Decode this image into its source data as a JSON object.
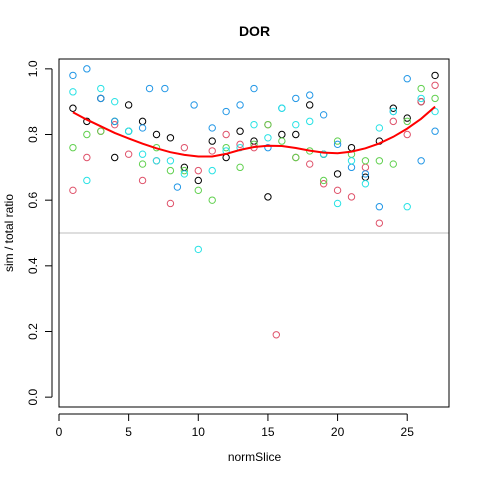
{
  "chart_data": {
    "type": "scatter",
    "title": "DOR",
    "xlabel": "normSlice",
    "ylabel": "sim / total ratio",
    "xlim": [
      0,
      28
    ],
    "ylim": [
      -0.03,
      1.03
    ],
    "x_ticks": [
      0,
      5,
      10,
      15,
      20,
      25
    ],
    "y_ticks": [
      0.0,
      0.2,
      0.4,
      0.6,
      0.8,
      1.0
    ],
    "x_tick_labels": [
      "0",
      "5",
      "10",
      "15",
      "20",
      "25"
    ],
    "y_tick_labels": [
      "0.0",
      "0.2",
      "0.4",
      "0.6",
      "0.8",
      "1.0"
    ],
    "reference_line": {
      "y": 0.5,
      "color": "#bebebe"
    },
    "smooth_line": {
      "color": "#ff0000",
      "x": [
        1,
        2,
        3,
        4,
        5,
        6,
        7,
        8,
        9,
        10,
        11,
        12,
        13,
        14,
        15,
        16,
        17,
        18,
        19,
        20,
        21,
        22,
        23,
        24,
        25,
        26,
        27
      ],
      "y": [
        0.868,
        0.845,
        0.825,
        0.805,
        0.788,
        0.772,
        0.758,
        0.746,
        0.738,
        0.733,
        0.733,
        0.741,
        0.753,
        0.762,
        0.766,
        0.765,
        0.759,
        0.751,
        0.745,
        0.743,
        0.748,
        0.758,
        0.773,
        0.793,
        0.818,
        0.848,
        0.885
      ]
    },
    "series": [
      {
        "color": "#000000",
        "x": [
          1,
          2,
          3,
          4,
          5,
          6,
          7,
          8,
          9,
          10,
          11,
          12,
          13,
          14,
          15,
          16,
          17,
          18,
          19,
          20,
          21,
          22,
          23,
          24,
          25,
          26,
          27
        ],
        "y": [
          0.88,
          0.84,
          0.91,
          0.73,
          0.89,
          0.84,
          0.8,
          0.79,
          0.7,
          0.66,
          0.78,
          0.73,
          0.81,
          0.78,
          0.61,
          0.8,
          0.8,
          0.89,
          0.74,
          0.68,
          0.76,
          0.67,
          0.78,
          0.88,
          0.85,
          0.9,
          0.98
        ]
      },
      {
        "color": "#df536b",
        "x": [
          1,
          2,
          3,
          4,
          5,
          6,
          7,
          8,
          9,
          10,
          11,
          12,
          13,
          14,
          15,
          15.6,
          17,
          18,
          19,
          20,
          21,
          22,
          23,
          24,
          25,
          26,
          27
        ],
        "y": [
          0.63,
          0.73,
          0.81,
          0.83,
          0.74,
          0.66,
          0.72,
          0.59,
          0.76,
          0.69,
          0.75,
          0.8,
          0.77,
          0.76,
          0.83,
          0.19,
          0.73,
          0.71,
          0.65,
          0.63,
          0.61,
          0.7,
          0.53,
          0.84,
          0.8,
          0.9,
          0.95
        ]
      },
      {
        "color": "#61d04f",
        "x": [
          1,
          2,
          3,
          4,
          5,
          6,
          7,
          8,
          9,
          10,
          11,
          12,
          13,
          14,
          15,
          16,
          17,
          18,
          19,
          20,
          21,
          22,
          23,
          24,
          25,
          26,
          27
        ],
        "y": [
          0.76,
          0.8,
          0.81,
          0.84,
          0.81,
          0.71,
          0.76,
          0.69,
          0.69,
          0.63,
          0.6,
          0.76,
          0.7,
          0.77,
          0.83,
          0.78,
          0.73,
          0.75,
          0.66,
          0.78,
          0.74,
          0.72,
          0.72,
          0.71,
          0.84,
          0.94,
          0.91
        ]
      },
      {
        "color": "#2297e6",
        "x": [
          1,
          2,
          3,
          4,
          5,
          6,
          6.5,
          7.6,
          8.5,
          9.7,
          11,
          12,
          13,
          14,
          15,
          16,
          17,
          18,
          19,
          20,
          21,
          22,
          23,
          24,
          25,
          26,
          27
        ],
        "y": [
          0.98,
          1.0,
          0.91,
          0.84,
          0.81,
          0.82,
          0.94,
          0.94,
          0.64,
          0.89,
          0.82,
          0.87,
          0.89,
          0.94,
          0.76,
          0.88,
          0.91,
          0.92,
          0.86,
          0.77,
          0.7,
          0.68,
          0.58,
          0.87,
          0.97,
          0.72,
          0.81
        ]
      },
      {
        "color": "#28e2e5",
        "x": [
          1,
          2,
          3,
          4,
          5,
          6,
          7,
          8,
          9,
          10,
          11,
          12,
          13,
          14,
          15,
          16,
          17,
          18,
          19,
          20,
          21,
          22,
          23,
          24,
          25,
          26,
          27
        ],
        "y": [
          0.93,
          0.66,
          0.94,
          0.9,
          0.81,
          0.74,
          0.72,
          0.72,
          0.68,
          0.45,
          0.69,
          0.75,
          0.76,
          0.83,
          0.79,
          0.88,
          0.83,
          0.84,
          0.74,
          0.59,
          0.72,
          0.65,
          0.82,
          0.87,
          0.58,
          0.91,
          0.87
        ]
      }
    ]
  }
}
